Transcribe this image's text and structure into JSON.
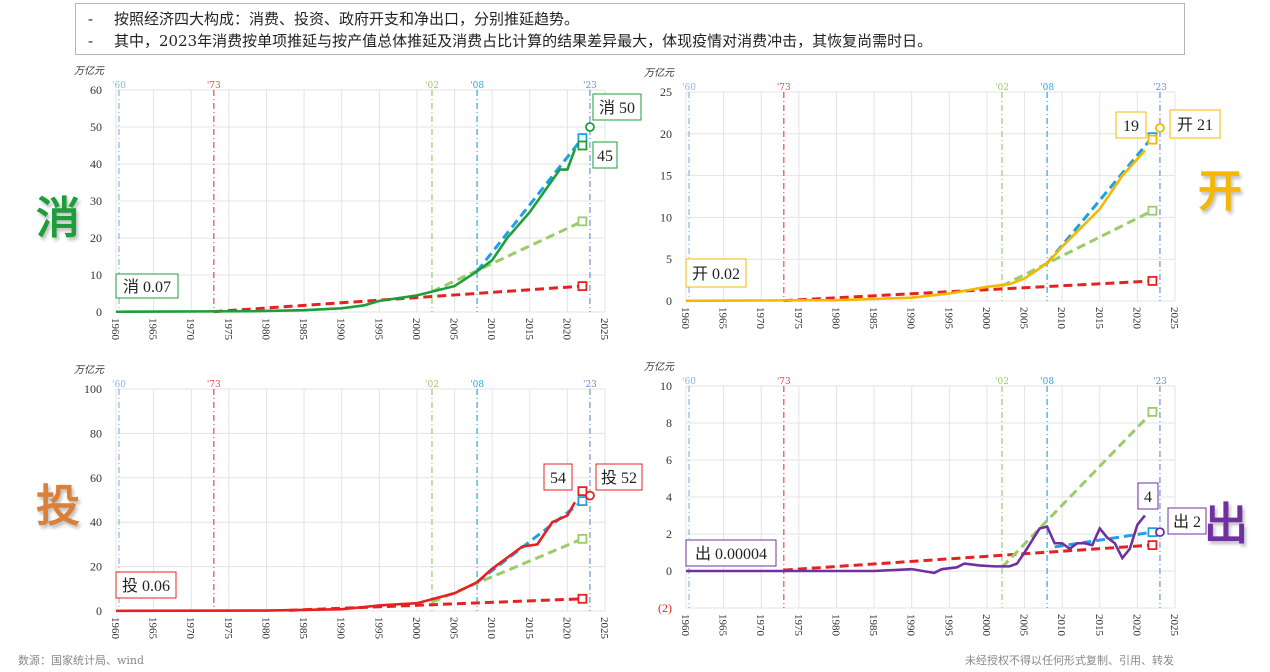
{
  "notes": [
    "按照经济四大构成：消费、投资、政府开支和净出口，分别推延趋势。",
    "其中，2023年消费按单项推延与按产值总体推延及消费占比计算的结果差异最大，体现疫情对消费冲击，其恢复尚需时日。"
  ],
  "bullet": "-",
  "source": "数源：国家统计局、wind",
  "disclaimer": "未经授权不得以任何形式复制、引用、转发",
  "colors": {
    "trend_1973": "#e52222",
    "trend_2002": "#9bcb6b",
    "trend_2008": "#1ea0e6"
  },
  "reference_years": [
    {
      "label": "'60",
      "year": 1960.4,
      "color": "#8ab4e8"
    },
    {
      "label": "'73",
      "year": 1973,
      "color": "#e84a4a"
    },
    {
      "label": "'02",
      "year": 2002,
      "color": "#9bcb6b"
    },
    {
      "label": "'08",
      "year": 2008,
      "color": "#29a8e0"
    },
    {
      "label": "'23",
      "year": 2023,
      "color": "#6c90d8"
    }
  ],
  "chart_data": [
    {
      "type": "line",
      "side_label": "消",
      "color": "#1e9e3a",
      "ylabel": "万亿元",
      "xlim": [
        1960,
        2025
      ],
      "xticks": [
        1960,
        1965,
        1970,
        1975,
        1980,
        1985,
        1990,
        1995,
        2000,
        2005,
        2010,
        2015,
        2020,
        2025
      ],
      "ylim": [
        0,
        60
      ],
      "yticks": [
        0,
        10,
        20,
        30,
        40,
        50,
        60
      ],
      "ytick_labels": [
        "0",
        "10",
        "20",
        "30",
        "40",
        "50",
        "60"
      ],
      "grid": true,
      "actual": [
        [
          1960,
          0.07
        ],
        [
          1978,
          0.2
        ],
        [
          1985,
          0.5
        ],
        [
          1990,
          1.0
        ],
        [
          1993,
          1.8
        ],
        [
          1995,
          3.0
        ],
        [
          2000,
          4.5
        ],
        [
          2005,
          7
        ],
        [
          2008,
          11
        ],
        [
          2010,
          14
        ],
        [
          2012,
          20
        ],
        [
          2015,
          27
        ],
        [
          2019,
          38.5
        ],
        [
          2020,
          38.5
        ],
        [
          2021,
          44
        ]
      ],
      "trends": [
        {
          "from": [
            1973,
            0.1
          ],
          "to": [
            2022,
            7
          ],
          "color_key": "trend_1973"
        },
        {
          "from": [
            2002,
            5.5
          ],
          "to": [
            2022,
            24.5
          ],
          "color_key": "trend_2002"
        },
        {
          "from": [
            2008,
            11
          ],
          "to": [
            2022,
            47
          ],
          "color_key": "trend_2008"
        }
      ],
      "markers_2022": [
        {
          "value": 45,
          "color": "#1e9e3a"
        }
      ],
      "marker_2023": 50,
      "labels": {
        "start": "消 0.07",
        "forecast_2023": "消 50",
        "value_2022": "45"
      }
    },
    {
      "type": "line",
      "side_label": "开",
      "color": "#f5b800",
      "ylabel": "万亿元",
      "xlim": [
        1960,
        2025
      ],
      "xticks": [
        1960,
        1965,
        1970,
        1975,
        1980,
        1985,
        1990,
        1995,
        2000,
        2005,
        2010,
        2015,
        2020,
        2025
      ],
      "ylim": [
        0,
        25
      ],
      "yticks": [
        0,
        5,
        10,
        15,
        20,
        25
      ],
      "ytick_labels": [
        "0",
        "5",
        "10",
        "15",
        "20",
        "25"
      ],
      "grid": true,
      "actual": [
        [
          1960,
          0.02
        ],
        [
          1980,
          0.1
        ],
        [
          1990,
          0.4
        ],
        [
          1995,
          0.9
        ],
        [
          2000,
          1.7
        ],
        [
          2003,
          2.0
        ],
        [
          2005,
          2.7
        ],
        [
          2008,
          4.5
        ],
        [
          2010,
          6.5
        ],
        [
          2015,
          11
        ],
        [
          2018,
          15
        ],
        [
          2021,
          18
        ]
      ],
      "trends": [
        {
          "from": [
            1973,
            0.05
          ],
          "to": [
            2022,
            2.4
          ],
          "color_key": "trend_1973"
        },
        {
          "from": [
            2002,
            1.8
          ],
          "to": [
            2022,
            10.8
          ],
          "color_key": "trend_2002"
        },
        {
          "from": [
            2008,
            4.5
          ],
          "to": [
            2022,
            19.6
          ],
          "color_key": "trend_2008"
        }
      ],
      "markers_2022": [
        {
          "value": 19.3,
          "color": "#f5b800"
        }
      ],
      "marker_2023": 20.7,
      "labels": {
        "start": "开 0.02",
        "forecast_2023": "开 21",
        "value_2022": "19"
      }
    },
    {
      "type": "line",
      "side_label": "投",
      "color": "#e82020",
      "ylabel": "万亿元",
      "xlim": [
        1960,
        2025
      ],
      "xticks": [
        1960,
        1965,
        1970,
        1975,
        1980,
        1985,
        1990,
        1995,
        2000,
        2005,
        2010,
        2015,
        2020,
        2025
      ],
      "ylim": [
        0,
        100
      ],
      "yticks": [
        0,
        20,
        40,
        60,
        80,
        100
      ],
      "ytick_labels": [
        "0",
        "20",
        "40",
        "60",
        "80",
        "100"
      ],
      "grid": true,
      "actual": [
        [
          1960,
          0.06
        ],
        [
          1980,
          0.2
        ],
        [
          1990,
          0.8
        ],
        [
          1993,
          1.8
        ],
        [
          1995,
          2.5
        ],
        [
          2000,
          3.5
        ],
        [
          2005,
          8
        ],
        [
          2008,
          13
        ],
        [
          2010,
          19
        ],
        [
          2012,
          24
        ],
        [
          2014,
          29
        ],
        [
          2016,
          30
        ],
        [
          2018,
          40
        ],
        [
          2020,
          43
        ],
        [
          2021,
          49
        ]
      ],
      "trends": [
        {
          "from": [
            1983,
            0.3
          ],
          "to": [
            2022,
            5.5
          ],
          "color_key": "trend_1973"
        },
        {
          "from": [
            2002,
            4
          ],
          "to": [
            2022,
            32.5
          ],
          "color_key": "trend_2002"
        },
        {
          "from": [
            2008,
            13
          ],
          "to": [
            2022,
            49.5
          ],
          "color_key": "trend_2008"
        }
      ],
      "markers_2022": [
        {
          "value": 54,
          "color": "#e82020"
        }
      ],
      "marker_2023": 52,
      "labels": {
        "start": "投 0.06",
        "forecast_2023": "投 52",
        "value_2022": "54"
      }
    },
    {
      "type": "line",
      "side_label": "出",
      "color": "#7030a0",
      "ylabel": "万亿元",
      "xlim": [
        1960,
        2025
      ],
      "xticks": [
        1960,
        1965,
        1970,
        1975,
        1980,
        1985,
        1990,
        1995,
        2000,
        2005,
        2010,
        2015,
        2020,
        2025
      ],
      "ylim": [
        -2,
        10
      ],
      "yticks": [
        -2,
        0,
        2,
        4,
        6,
        8,
        10
      ],
      "ytick_labels": [
        "(2)",
        "0",
        "2",
        "4",
        "6",
        "8",
        "10"
      ],
      "grid": true,
      "actual": [
        [
          1960,
          0
        ],
        [
          1985,
          0
        ],
        [
          1990,
          0.1
        ],
        [
          1993,
          -0.1
        ],
        [
          1994,
          0.1
        ],
        [
          1996,
          0.2
        ],
        [
          1997,
          0.4
        ],
        [
          1999,
          0.3
        ],
        [
          2001,
          0.25
        ],
        [
          2003,
          0.25
        ],
        [
          2004,
          0.4
        ],
        [
          2005,
          1.0
        ],
        [
          2007,
          2.3
        ],
        [
          2008,
          2.4
        ],
        [
          2009,
          1.5
        ],
        [
          2010,
          1.5
        ],
        [
          2011,
          1.2
        ],
        [
          2012,
          1.5
        ],
        [
          2013,
          1.5
        ],
        [
          2014,
          1.4
        ],
        [
          2015,
          2.3
        ],
        [
          2016,
          1.8
        ],
        [
          2017,
          1.5
        ],
        [
          2018,
          0.7
        ],
        [
          2019,
          1.2
        ],
        [
          2020,
          2.5
        ],
        [
          2021,
          3.0
        ]
      ],
      "trends": [
        {
          "from": [
            1973,
            0.05
          ],
          "to": [
            2022,
            1.4
          ],
          "color_key": "trend_1973"
        },
        {
          "from": [
            2002,
            0.2
          ],
          "to": [
            2022,
            8.6
          ],
          "color_key": "trend_2002"
        },
        {
          "from": [
            2009,
            1.3
          ],
          "to": [
            2022,
            2.1
          ],
          "color_key": "trend_2008"
        }
      ],
      "markers_2022": [
        {
          "value": 4,
          "color": "#7030a0"
        }
      ],
      "marker_2023": 2.1,
      "labels": {
        "start": "出 0.00004",
        "forecast_2023": "出 2",
        "value_2022": "4"
      }
    }
  ]
}
